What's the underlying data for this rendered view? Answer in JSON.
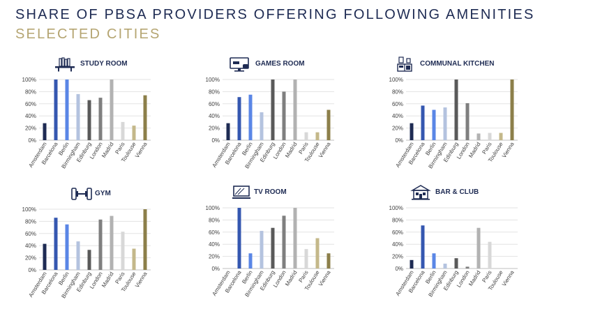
{
  "header": {
    "title": "SHARE OF PBSA PROVIDERS OFFERING FOLLOWING AMENITIES",
    "subtitle": "SELECTED CITIES"
  },
  "colors": {
    "title": "#1e2b53",
    "subtitle": "#b5a572",
    "Amsterdam": "#1e2b53",
    "Barcelona": "#3557b0",
    "Berlin": "#5a86e6",
    "Birmingham": "#b4c3df",
    "Edinburg": "#5a5a5a",
    "London": "#7f7f7f",
    "Madrid": "#b2b2b2",
    "Paris": "#d8d8d8",
    "Toulouse": "#c4b88a",
    "Vienna": "#8c7f4a"
  },
  "chart_data": [
    {
      "type": "bar",
      "title": "STUDY ROOM",
      "icon": "bookshelf-icon",
      "categories": [
        "Amsterdam",
        "Barcelona",
        "Berlin",
        "Birmingham",
        "Edinburg",
        "London",
        "Madrid",
        "Paris",
        "Toulouse",
        "Vienna"
      ],
      "values": [
        28,
        100,
        100,
        76,
        66,
        70,
        100,
        30,
        24,
        74
      ],
      "ylim": [
        0,
        100
      ],
      "yticks": [
        "0%",
        "20%",
        "40%",
        "60%",
        "80%",
        "100%"
      ],
      "grid": true
    },
    {
      "type": "bar",
      "title": "GAMES ROOM",
      "icon": "games-screen-icon",
      "categories": [
        "Amsterdam",
        "Barcelona",
        "Berlin",
        "Birmingham",
        "Edinburg",
        "London",
        "Madrid",
        "Paris",
        "Toulouse",
        "Vienna"
      ],
      "values": [
        28,
        71,
        75,
        46,
        100,
        80,
        100,
        13,
        13,
        50
      ],
      "ylim": [
        0,
        100
      ],
      "yticks": [
        "0%",
        "20%",
        "40%",
        "60%",
        "80%",
        "100%"
      ],
      "grid": true
    },
    {
      "type": "bar",
      "title": "COMMUNAL KITCHEN",
      "icon": "kitchen-icon",
      "categories": [
        "Amsterdam",
        "Barcelona",
        "Berlin",
        "Birmingham",
        "Edinburg",
        "London",
        "Madrid",
        "Paris",
        "Toulouse",
        "Vienna"
      ],
      "values": [
        28,
        57,
        50,
        54,
        100,
        61,
        11,
        12,
        12,
        100
      ],
      "ylim": [
        0,
        100
      ],
      "yticks": [
        "0%",
        "20%",
        "40%",
        "60%",
        "80%",
        "100%"
      ],
      "grid": true
    },
    {
      "type": "bar",
      "title": "GYM",
      "icon": "dumbbell-icon",
      "categories": [
        "Amsterdam",
        "Barcelona",
        "Berlin",
        "Birmingham",
        "Edinburg",
        "London",
        "Madrid",
        "Paris",
        "Toulouse",
        "Vienna"
      ],
      "values": [
        43,
        86,
        75,
        47,
        33,
        83,
        89,
        63,
        35,
        100
      ],
      "ylim": [
        0,
        100
      ],
      "yticks": [
        "0%",
        "20%",
        "40%",
        "60%",
        "80%",
        "100%"
      ],
      "grid": true
    },
    {
      "type": "bar",
      "title": "TV ROOM",
      "icon": "tv-icon",
      "categories": [
        "Amsterdam",
        "Barcelona",
        "Berlin",
        "Birmingham",
        "Edinburg",
        "London",
        "Madrid",
        "Paris",
        "Toulouse",
        "Vienna"
      ],
      "values": [
        0,
        100,
        25,
        62,
        67,
        87,
        100,
        32,
        50,
        25
      ],
      "ylim": [
        0,
        100
      ],
      "yticks": [
        "0%",
        "20%",
        "40%",
        "60%",
        "80%",
        "100%"
      ],
      "grid": true
    },
    {
      "type": "bar",
      "title": "BAR & CLUB",
      "icon": "bar-building-icon",
      "categories": [
        "Amsterdam",
        "Barcelona",
        "Berlin",
        "Birmingham",
        "Edinburg",
        "London",
        "Madrid",
        "Paris",
        "Toulouse",
        "Vienna"
      ],
      "values": [
        14,
        71,
        25,
        8,
        17,
        3,
        67,
        44,
        0,
        0
      ],
      "ylim": [
        0,
        100
      ],
      "yticks": [
        "0%",
        "20%",
        "40%",
        "60%",
        "80%",
        "100%"
      ],
      "grid": true
    }
  ]
}
